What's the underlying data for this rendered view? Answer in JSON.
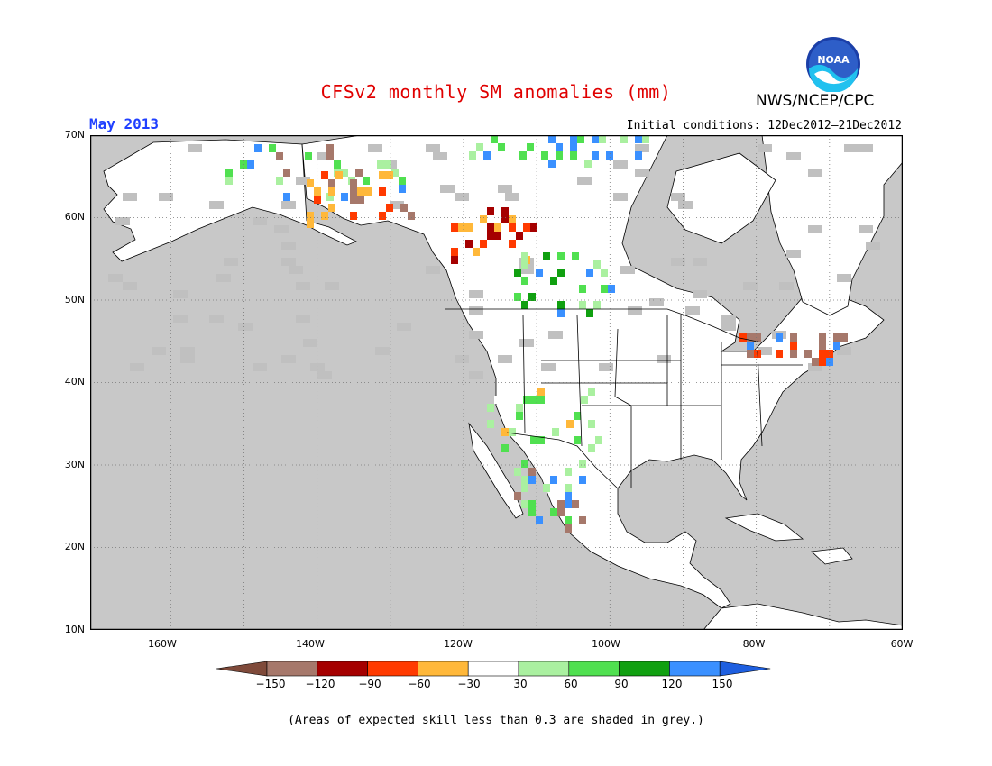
{
  "header": {
    "title": "CFSv2 monthly SM anomalies (mm)",
    "month": "May 2013",
    "initial_conditions": "Initial conditions: 12Dec2012–21Dec2012",
    "agency": "NWS/NCEP/CPC",
    "logo_text": "NOAA"
  },
  "map": {
    "lat_labels": [
      "70N",
      "60N",
      "50N",
      "40N",
      "30N",
      "20N",
      "10N"
    ],
    "lon_labels": [
      "160W",
      "140W",
      "120W",
      "100W",
      "80W",
      "60W"
    ],
    "extent": {
      "lon": [
        -171,
        -60
      ],
      "lat": [
        10,
        70
      ]
    },
    "colors": {
      "ocean": "#c8c8c8",
      "land": "#ffffff",
      "low_skill": "#c0c0c0",
      "border": "#000000"
    }
  },
  "colorbar": {
    "labels": [
      "−150",
      "−120",
      "−90",
      "−60",
      "−30",
      "30",
      "60",
      "90",
      "120",
      "150"
    ],
    "colors": [
      "#7f4a3a",
      "#a6786b",
      "#a50000",
      "#ff3a00",
      "#ffb83a",
      "#ffffff",
      "#aaf0a0",
      "#50e050",
      "#10a010",
      "#3a90ff",
      "#1e5fe0"
    ]
  },
  "footnote": "(Areas of expected skill less than 0.3 are shaded in grey.)"
}
